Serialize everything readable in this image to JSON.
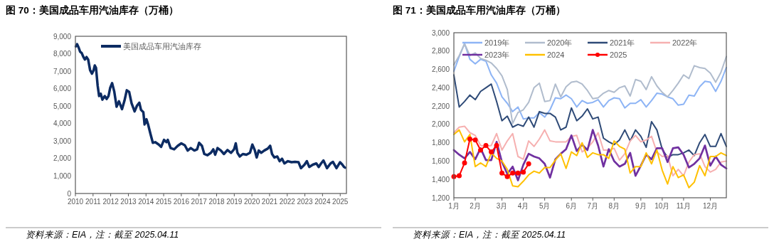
{
  "chart_data": [
    {
      "type": "line",
      "title": "图 70：美国成品车用汽油库存（万桶）",
      "annotations": [
        "资料来源：EIA，注：截至 2025.04.11"
      ],
      "legend": "top left",
      "grid": false,
      "xlim": [
        "2010-01-01",
        "2025-05-10"
      ],
      "xticks": [
        "2010",
        "2011",
        "2012",
        "2013",
        "2014",
        "2015",
        "2016",
        "2017",
        "2018",
        "2019",
        "2020",
        "2021",
        "2022",
        "2023",
        "2024",
        "2025"
      ],
      "ylim": [
        0,
        9000
      ],
      "yticks": [
        0,
        {
          "value": 1000,
          "label": "1,000"
        },
        {
          "value": 2000,
          "label": "2,000"
        },
        {
          "value": 3000,
          "label": "3,000"
        },
        {
          "value": 4000,
          "label": "4,000"
        },
        {
          "value": 5000,
          "label": "5,000"
        },
        {
          "value": 6000,
          "label": "6,000"
        },
        {
          "value": 7000,
          "label": "7,000"
        },
        {
          "value": 8000,
          "label": "8,000"
        },
        {
          "value": 9000,
          "label": "9,000"
        }
      ],
      "x": [
        "2010-01-10",
        "2010-02-04",
        "2010-03-10",
        "2010-04-08",
        "2010-05-12",
        "2010-06-16",
        "2010-07-15",
        "2010-08-19",
        "2010-09-22",
        "2010-11-01",
        "2010-12-10",
        "2011-01-13",
        "2011-02-06",
        "2011-03-03",
        "2011-04-06",
        "2011-05-06",
        "2011-06-09",
        "2011-07-13",
        "2011-08-31",
        "2011-10-09",
        "2011-11-17",
        "2011-12-22",
        "2012-01-30",
        "2012-03-14",
        "2012-05-02",
        "2012-06-20",
        "2012-08-22",
        "2012-10-11",
        "2012-11-29",
        "2013-01-17",
        "2013-03-08",
        "2013-05-10",
        "2013-06-28",
        "2013-08-16",
        "2013-09-19",
        "2013-11-07",
        "2013-12-02",
        "2014-01-10",
        "2014-02-13",
        "2014-04-03",
        "2014-05-22",
        "2014-07-10",
        "2014-09-22",
        "2014-11-10",
        "2015-01-08",
        "2015-02-26",
        "2015-03-27",
        "2015-05-25",
        "2015-08-07",
        "2015-10-19",
        "2016-01-01",
        "2016-03-14",
        "2016-05-12",
        "2016-07-15",
        "2016-09-27",
        "2016-11-24",
        "2017-01-03",
        "2017-03-03",
        "2017-04-21",
        "2017-06-23",
        "2017-09-05",
        "2017-10-24",
        "2017-12-02",
        "2018-01-20",
        "2018-03-30",
        "2018-06-01",
        "2018-08-13",
        "2018-10-26",
        "2018-12-28",
        "2019-02-01",
        "2019-03-07",
        "2019-04-25",
        "2019-06-28",
        "2019-09-09",
        "2019-11-22",
        "2020-01-10",
        "2020-02-28",
        "2020-04-08",
        "2020-05-22",
        "2020-07-10",
        "2020-09-12",
        "2020-11-24",
        "2021-01-13",
        "2021-02-21",
        "2021-04-11",
        "2021-06-09",
        "2021-07-27",
        "2021-09-15",
        "2021-11-03",
        "2022-01-15",
        "2022-03-30",
        "2022-06-11",
        "2022-08-23",
        "2022-10-11",
        "2022-12-24",
        "2023-02-11",
        "2023-04-01",
        "2023-06-14",
        "2023-08-26",
        "2023-10-14",
        "2023-12-02",
        "2024-01-20",
        "2024-04-03",
        "2024-06-15",
        "2024-08-04",
        "2024-10-16",
        "2024-12-28",
        "2025-02-15",
        "2025-03-21",
        "2025-04-11"
      ],
      "series": [
        {
          "name": "美国成品车用汽油库存",
          "color": "#0c2b62",
          "values": [
            8420,
            8550,
            8350,
            8120,
            8040,
            7810,
            7670,
            7810,
            7670,
            7060,
            6860,
            7060,
            7330,
            7200,
            6180,
            5580,
            5710,
            5370,
            5580,
            5410,
            5580,
            6050,
            6320,
            5850,
            4970,
            5280,
            4830,
            5300,
            5910,
            5820,
            5170,
            4700,
            5030,
            5200,
            4790,
            4650,
            3950,
            4250,
            3950,
            3410,
            2900,
            2940,
            2800,
            2670,
            3070,
            2940,
            3070,
            2600,
            2530,
            2730,
            2870,
            2760,
            2460,
            2600,
            2460,
            2530,
            2900,
            2730,
            2260,
            2190,
            2330,
            2530,
            2220,
            2600,
            2460,
            2260,
            2490,
            2330,
            2530,
            2870,
            2330,
            2120,
            2260,
            2220,
            2330,
            2800,
            2490,
            2060,
            2460,
            2330,
            2460,
            2570,
            2730,
            2260,
            2060,
            2120,
            1850,
            1990,
            1720,
            1850,
            1790,
            1810,
            1790,
            1450,
            1650,
            1850,
            1520,
            1650,
            1720,
            1520,
            1720,
            1890,
            1450,
            1720,
            1810,
            1450,
            1790,
            1650,
            1520,
            1480
          ]
        }
      ]
    },
    {
      "type": "line",
      "title": "图 71：美国成品车用汽油库存（万桶）",
      "annotations": [
        "资料来源：EIA，注：截至 2025.04.11"
      ],
      "legend": "top",
      "grid": false,
      "categories": [
        "1月",
        null,
        null,
        null,
        "2月",
        null,
        null,
        null,
        null,
        "3月",
        null,
        null,
        null,
        "4月",
        null,
        null,
        null,
        "5月",
        null,
        null,
        null,
        null,
        "6月",
        null,
        null,
        null,
        "7月",
        null,
        null,
        null,
        "8月",
        null,
        null,
        null,
        null,
        "9月",
        null,
        null,
        null,
        "10月",
        null,
        null,
        null,
        "11月",
        null,
        null,
        null,
        null,
        "12月",
        null,
        null,
        null
      ],
      "ylim": [
        1200,
        3000
      ],
      "yticks": [
        {
          "value": 1200,
          "label": "1,200"
        },
        {
          "value": 1400,
          "label": "1,400"
        },
        {
          "value": 1600,
          "label": "1,600"
        },
        {
          "value": 1800,
          "label": "1,800"
        },
        {
          "value": 2000,
          "label": "2,000"
        },
        {
          "value": 2200,
          "label": "2,200"
        },
        {
          "value": 2400,
          "label": "2,400"
        },
        {
          "value": 2600,
          "label": "2,600"
        },
        {
          "value": 2800,
          "label": "2,800"
        },
        {
          "value": 3000,
          "label": "3,000"
        }
      ],
      "series": [
        {
          "name": "2019年",
          "color": "#8db4f5",
          "values": [
            2580,
            2740,
            2880,
            2710,
            2660,
            2710,
            2690,
            2540,
            2450,
            2300,
            2230,
            2140,
            2190,
            2060,
            2070,
            2070,
            2130,
            2080,
            2160,
            2290,
            2280,
            2320,
            2280,
            2190,
            2260,
            2230,
            2240,
            2270,
            2190,
            2260,
            2290,
            2280,
            2180,
            2230,
            2230,
            2270,
            2190,
            2260,
            2340,
            2330,
            2300,
            2280,
            2210,
            2220,
            2320,
            2310,
            2410,
            2470,
            2460,
            2360,
            2470,
            2620
          ]
        },
        {
          "name": "2020年",
          "color": "#b0bccd",
          "values": [
            2650,
            2750,
            2880,
            2750,
            2780,
            2720,
            2700,
            2670,
            2610,
            2530,
            2380,
            2010,
            2130,
            2160,
            2240,
            2400,
            2450,
            2250,
            2260,
            2440,
            2300,
            2410,
            2460,
            2470,
            2440,
            2370,
            2280,
            2290,
            2340,
            2370,
            2350,
            2400,
            2420,
            2310,
            2490,
            2470,
            2380,
            2520,
            2420,
            2350,
            2300,
            2370,
            2450,
            2540,
            2500,
            2640,
            2620,
            2610,
            2560,
            2460,
            2570,
            2740
          ]
        },
        {
          "name": "2021年",
          "color": "#2e4a77",
          "values": [
            2540,
            2190,
            2250,
            2320,
            2270,
            2360,
            2400,
            2440,
            2250,
            2040,
            2090,
            1970,
            2000,
            1980,
            2080,
            1970,
            2140,
            2120,
            2120,
            2080,
            1940,
            1970,
            2180,
            2040,
            2090,
            2170,
            2060,
            2080,
            1850,
            1810,
            1780,
            1830,
            1940,
            1820,
            1940,
            1870,
            1750,
            2030,
            1940,
            1730,
            1640,
            1670,
            1670,
            1690,
            1720,
            1660,
            1800,
            1890,
            1760,
            1760,
            1900,
            1760
          ]
        },
        {
          "name": "2022年",
          "color": "#f6b0b0",
          "values": [
            1910,
            1970,
            1980,
            1910,
            1880,
            1770,
            1760,
            1770,
            1900,
            1720,
            1820,
            1900,
            1650,
            1620,
            1820,
            1760,
            1840,
            1940,
            1820,
            1810,
            1810,
            1810,
            1870,
            1880,
            1700,
            1740,
            1810,
            1910,
            1720,
            1720,
            1740,
            1610,
            1680,
            1820,
            1880,
            1810,
            1830,
            1870,
            1700,
            1650,
            1660,
            1440,
            1510,
            1440,
            1590,
            1670,
            1680,
            1540,
            1480,
            1510,
            1590,
            1600
          ]
        },
        {
          "name": "2023年",
          "color": "#7030a0",
          "values": [
            1720,
            1670,
            1630,
            1700,
            1620,
            1740,
            1610,
            1610,
            1810,
            1590,
            1460,
            1540,
            1390,
            1560,
            1680,
            1650,
            1630,
            1570,
            1420,
            1620,
            1680,
            1730,
            1880,
            1710,
            1780,
            1720,
            1940,
            1770,
            1540,
            1730,
            1600,
            1540,
            1570,
            1690,
            1440,
            1550,
            1670,
            1620,
            1740,
            1740,
            1590,
            1740,
            1750,
            1670,
            1530,
            1570,
            1630,
            1770,
            1550,
            1650,
            1560,
            1520
          ]
        },
        {
          "name": "2024",
          "color": "#ffc000",
          "values": [
            1890,
            1940,
            1810,
            1890,
            1540,
            1580,
            1540,
            1690,
            1630,
            1600,
            1510,
            1330,
            1320,
            1380,
            1450,
            1490,
            1470,
            1530,
            1530,
            1610,
            1680,
            1520,
            1700,
            1660,
            1800,
            1640,
            1690,
            1670,
            1670,
            1630,
            1820,
            1760,
            1730,
            1470,
            1540,
            1540,
            1690,
            1570,
            1720,
            1500,
            1350,
            1540,
            1420,
            1450,
            1310,
            1370,
            1550,
            1440,
            1650,
            1650,
            1690,
            1660
          ]
        },
        {
          "name": "2025",
          "color": "#ff0000",
          "marker": "circle",
          "values": [
            1430,
            1440,
            1580,
            1840,
            1830,
            1720,
            1770,
            1700,
            1770,
            1470,
            1430,
            1470,
            1470,
            1480,
            1570,
            null,
            null,
            null,
            null,
            null,
            null,
            null,
            null,
            null,
            null,
            null,
            null,
            null,
            null,
            null,
            null,
            null,
            null,
            null,
            null,
            null,
            null,
            null,
            null,
            null,
            null,
            null,
            null,
            null,
            null,
            null,
            null,
            null,
            null,
            null,
            null,
            null
          ]
        }
      ]
    }
  ]
}
